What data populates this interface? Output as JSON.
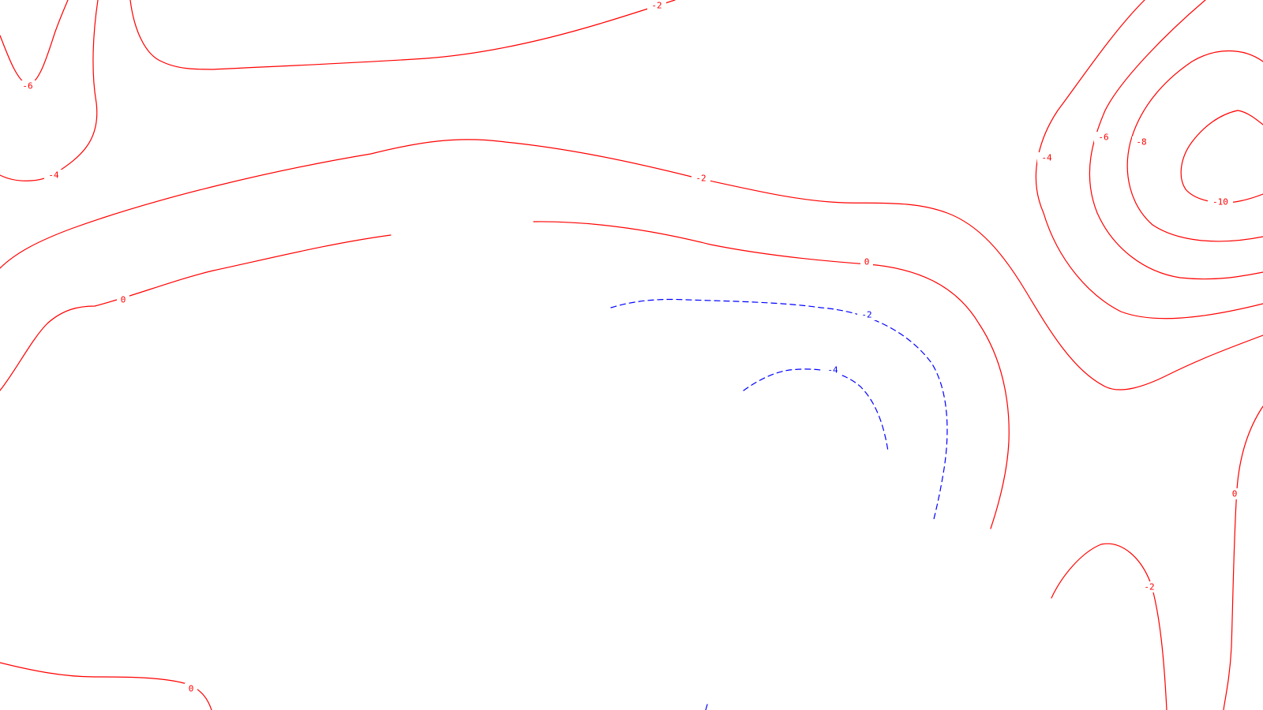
{
  "map": {
    "positive_color": "#ff0000",
    "negative_color": "#0000ff",
    "labels": {
      "top_arc": "-2",
      "top_left_loop": "-6",
      "left_loop": "-4",
      "band": "-2",
      "upper_zero": "0",
      "left_zero": "0",
      "low_dashed_outer": "-2",
      "low_dashed_inner": "-4",
      "right_outer": "-4",
      "right_mid": "-6",
      "right_inner": "-8",
      "right_center": "-10",
      "right_zero": "0",
      "bottom_right_arc": "-2",
      "bottom_left_zero": "0"
    }
  }
}
